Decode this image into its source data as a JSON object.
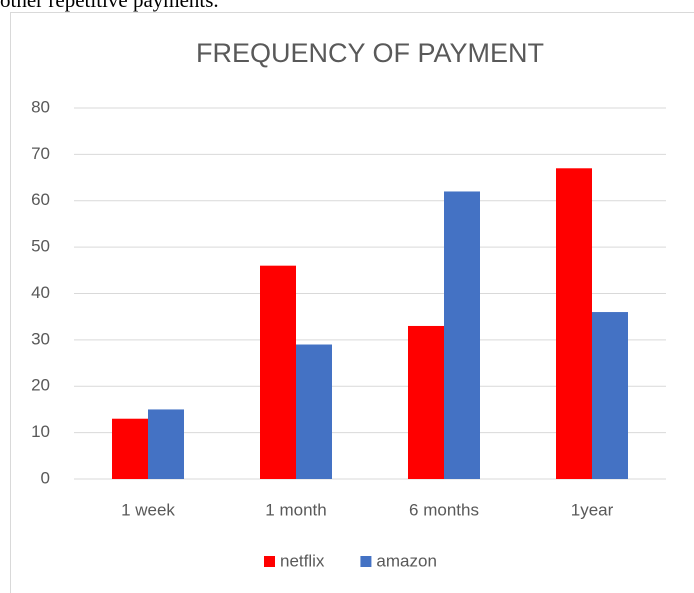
{
  "context_text": "other repetitive payments.",
  "chart_data": {
    "type": "bar",
    "title": "FREQUENCY OF PAYMENT",
    "categories": [
      "1 week",
      "1 month",
      "6 months",
      "1year"
    ],
    "series": [
      {
        "name": "netflix",
        "color": "#ff0000",
        "values": [
          13,
          46,
          33,
          67
        ]
      },
      {
        "name": "amazon",
        "color": "#4472c4",
        "values": [
          15,
          29,
          62,
          36
        ]
      }
    ],
    "ylim": [
      0,
      80
    ],
    "yticks": [
      0,
      10,
      20,
      30,
      40,
      50,
      60,
      70,
      80
    ],
    "grid": true,
    "legend": "bottom"
  }
}
